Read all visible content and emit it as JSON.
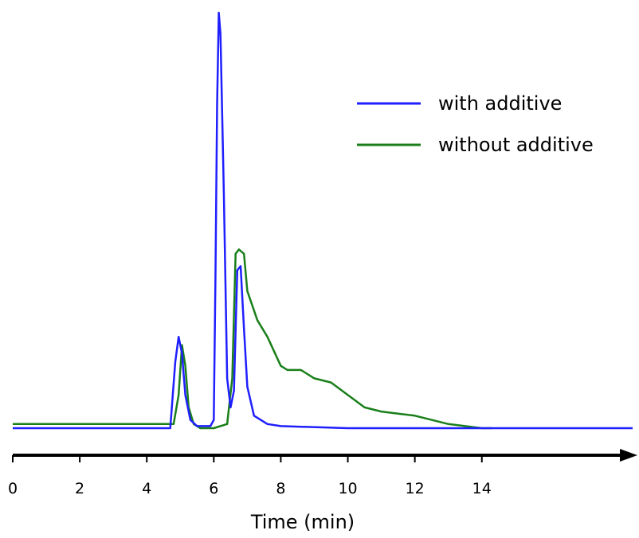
{
  "chart_data": {
    "type": "line",
    "title": "",
    "xlabel": "Time (min)",
    "ylabel": "",
    "xlim": [
      0,
      18.5
    ],
    "ylim": [
      0,
      1
    ],
    "x_ticks": [
      0,
      2,
      4,
      6,
      8,
      10,
      12,
      14
    ],
    "x_tick_labels": [
      "0",
      "2",
      "4",
      "6",
      "8",
      "10",
      "12",
      "14"
    ],
    "grid": false,
    "legend_position": "top-right",
    "series": [
      {
        "name": "with additive",
        "color": "#1f1fff",
        "x": [
          0,
          4.7,
          4.85,
          4.95,
          5.05,
          5.15,
          5.3,
          5.5,
          5.9,
          6.0,
          6.05,
          6.1,
          6.15,
          6.2,
          6.3,
          6.4,
          6.5,
          6.6,
          6.7,
          6.8,
          6.9,
          7.0,
          7.2,
          7.6,
          8.0,
          10.0,
          14.0,
          18.5
        ],
        "y": [
          0.0,
          0.0,
          0.16,
          0.22,
          0.18,
          0.08,
          0.02,
          0.005,
          0.005,
          0.02,
          0.36,
          0.78,
          1.0,
          0.95,
          0.57,
          0.12,
          0.05,
          0.09,
          0.38,
          0.39,
          0.24,
          0.1,
          0.03,
          0.01,
          0.005,
          0.0,
          0.0,
          0.0
        ]
      },
      {
        "name": "without additive",
        "color": "#1a7f1a",
        "x": [
          0,
          1.0,
          4.0,
          4.8,
          4.95,
          5.05,
          5.15,
          5.25,
          5.4,
          5.6,
          6.0,
          6.4,
          6.55,
          6.65,
          6.75,
          6.9,
          7.0,
          7.3,
          7.6,
          8.0,
          8.2,
          8.6,
          9.0,
          9.5,
          10.0,
          10.5,
          11.0,
          11.5,
          12.0,
          12.5,
          13.0,
          13.5,
          14.0,
          14.3
        ],
        "y": [
          0.01,
          0.01,
          0.01,
          0.01,
          0.08,
          0.2,
          0.15,
          0.05,
          0.01,
          0.0,
          0.0,
          0.01,
          0.12,
          0.42,
          0.43,
          0.42,
          0.33,
          0.26,
          0.22,
          0.15,
          0.14,
          0.14,
          0.12,
          0.11,
          0.08,
          0.05,
          0.04,
          0.035,
          0.03,
          0.02,
          0.01,
          0.005,
          0.0,
          0.0
        ]
      }
    ]
  }
}
